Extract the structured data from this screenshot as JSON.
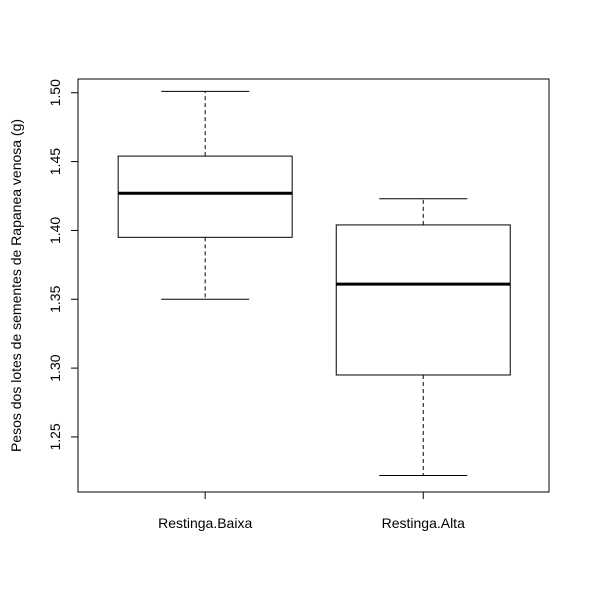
{
  "chart_data": {
    "type": "boxplot",
    "title": "",
    "xlabel": "",
    "ylabel": "Pesos dos lotes de sementes de Rapanea venosa (g)",
    "ylim": [
      1.21,
      1.51
    ],
    "yticks": [
      "1.25",
      "1.30",
      "1.35",
      "1.40",
      "1.45",
      "1.50"
    ],
    "categories": [
      "Restinga.Baixa",
      "Restinga.Alta"
    ],
    "boxes": [
      {
        "category": "Restinga.Baixa",
        "min": 1.35,
        "q1": 1.395,
        "median": 1.427,
        "q3": 1.454,
        "max": 1.501
      },
      {
        "category": "Restinga.Alta",
        "min": 1.222,
        "q1": 1.295,
        "median": 1.361,
        "q3": 1.404,
        "max": 1.423
      }
    ],
    "grid": false,
    "legend": "none",
    "colors": {
      "box_fill": "#ffffff",
      "line": "#000000"
    }
  }
}
